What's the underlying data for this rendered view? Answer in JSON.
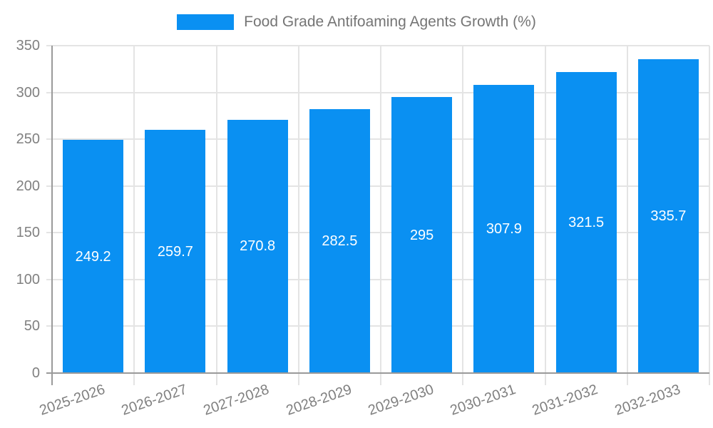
{
  "chart_data": {
    "type": "bar",
    "title": "Food Grade Antifoaming Agents Growth (%)",
    "legend": {
      "label": "Food Grade Antifoaming Agents Growth (%)",
      "position": "top-center"
    },
    "categories": [
      "2025-2026",
      "2026-2027",
      "2027-2028",
      "2028-2029",
      "2029-2030",
      "2030-2031",
      "2031-2032",
      "2032-2033"
    ],
    "series": [
      {
        "name": "Food Grade Antifoaming Agents Growth (%)",
        "values": [
          249.2,
          259.7,
          270.8,
          282.5,
          295,
          307.9,
          321.5,
          335.7
        ],
        "value_labels": [
          "249.2",
          "259.7",
          "270.8",
          "282.5",
          "295",
          "307.9",
          "321.5",
          "335.7"
        ]
      }
    ],
    "xlabel": "",
    "ylabel": "",
    "ylim": [
      0,
      350
    ],
    "yticks": [
      0,
      50,
      100,
      150,
      200,
      250,
      300,
      350
    ],
    "ytick_labels": [
      "0",
      "50",
      "100",
      "150",
      "200",
      "250",
      "300",
      "350"
    ],
    "grid": true,
    "x_tick_rotation_deg": -19
  },
  "colors": {
    "bar": "#0a90f2",
    "grid": "#e4e4e4",
    "axis": "#9a9a9a",
    "tick_label": "#808080",
    "legend_text": "#757575",
    "value_label": "#ffffff",
    "background": "#ffffff"
  }
}
